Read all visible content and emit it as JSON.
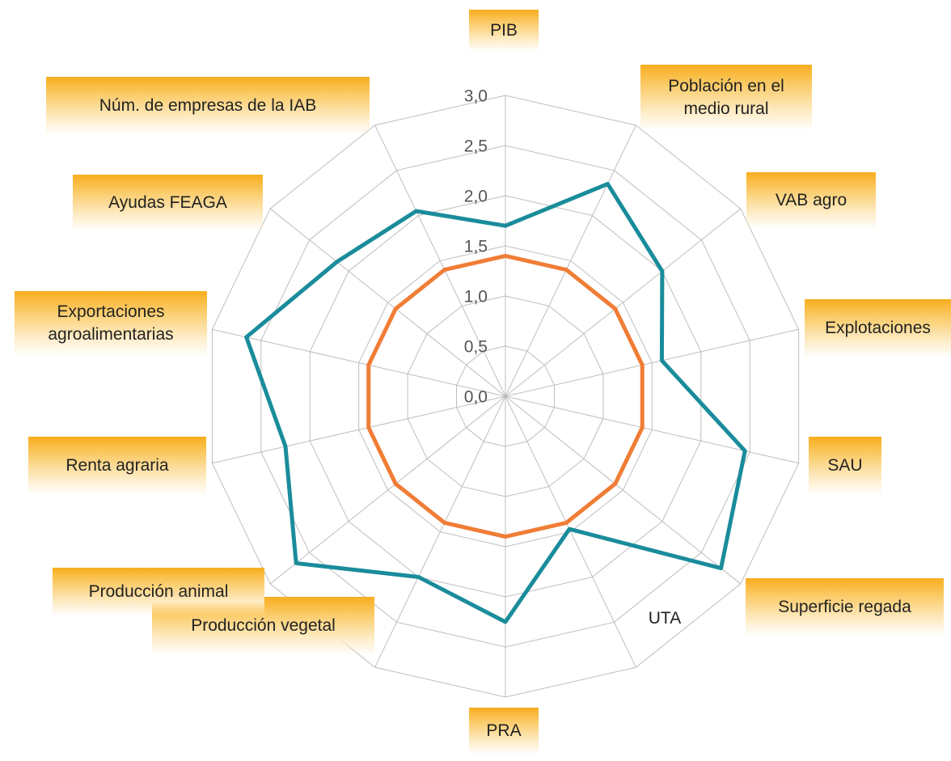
{
  "chart_data": {
    "type": "radar",
    "categories": [
      "PIB",
      "Población en el medio rural",
      "VAB agro",
      "Explotaciones",
      "SAU",
      "Superficie regada",
      "UTA",
      "PRA",
      "Producción vegetal",
      "Producción animal",
      "Renta agraria",
      "Exportaciones agroalimentarias",
      "Ayudas FEAGA",
      "Núm. de empresas de la IAB"
    ],
    "series": [
      {
        "color": "#1a8c9b",
        "values": [
          1.7,
          2.35,
          2.0,
          1.6,
          2.45,
          2.75,
          1.47,
          2.25,
          2.0,
          2.67,
          2.25,
          2.65,
          2.15,
          2.05
        ]
      },
      {
        "color": "#f07d36",
        "values": [
          1.4,
          1.4,
          1.4,
          1.4,
          1.4,
          1.4,
          1.4,
          1.4,
          1.4,
          1.4,
          1.4,
          1.4,
          1.4,
          1.4
        ]
      }
    ],
    "ylim": [
      0,
      3
    ],
    "yticks": [
      {
        "value": 0,
        "label": "0,0"
      },
      {
        "value": 0.5,
        "label": "0,5"
      },
      {
        "value": 1,
        "label": "1,0"
      },
      {
        "value": 1.5,
        "label": "1,5"
      },
      {
        "value": 2,
        "label": "2,0"
      },
      {
        "value": 2.5,
        "label": "2,5"
      },
      {
        "value": 3,
        "label": "3,0"
      }
    ],
    "grid": true
  }
}
